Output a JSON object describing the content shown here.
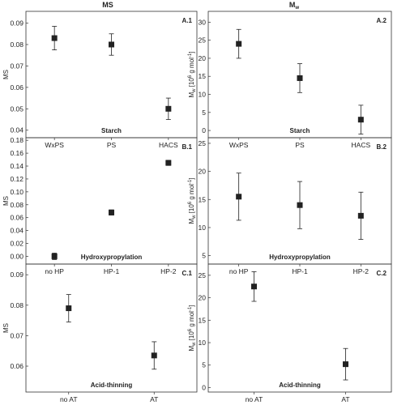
{
  "column_titles": {
    "left": "MS",
    "right": "M",
    "right_sub": "w"
  },
  "chart_data": [
    {
      "id": "A.1",
      "type": "scatter",
      "tag": "A.1",
      "caption": "Starch",
      "categories": [
        "WxPS",
        "PS",
        "HACS"
      ],
      "values": [
        0.083,
        0.08,
        0.05
      ],
      "err": [
        0.0055,
        0.005,
        0.005
      ],
      "ylabel": "MS",
      "ylim": [
        0.0365,
        0.0955
      ],
      "yticks": [
        0.04,
        0.05,
        0.06,
        0.07,
        0.08,
        0.09
      ],
      "ytick_labels": [
        "0.04",
        "0.05",
        "0.06",
        "0.07",
        "0.08",
        "0.09"
      ],
      "grid": false
    },
    {
      "id": "A.2",
      "type": "scatter",
      "tag": "A.2",
      "caption": "Starch",
      "categories": [
        "WxPS",
        "PS",
        "HACS"
      ],
      "values": [
        24,
        14.5,
        3
      ],
      "err": [
        4,
        4,
        4
      ],
      "ylabel": "M",
      "ylabel_sub": "w",
      "ylabel_rest": " [10",
      "ylabel_sup": "6",
      "ylabel_unit": " g mol",
      "ylabel_unit_sup": "-1",
      "ylabel_end": "]",
      "ylim": [
        -2,
        33
      ],
      "yticks": [
        0,
        5,
        10,
        15,
        20,
        25,
        30
      ],
      "ytick_labels": [
        "0",
        "5",
        "10",
        "15",
        "20",
        "25",
        "30"
      ],
      "grid": false
    },
    {
      "id": "B.1",
      "type": "scatter",
      "tag": "B.1",
      "caption": "Hydroxypropylation",
      "categories": [
        "no HP",
        "HP-1",
        "HP-2"
      ],
      "values": [
        0.0,
        0.068,
        0.145
      ],
      "err": [
        0.005,
        0.004,
        0.004
      ],
      "ylabel": "MS",
      "ylim": [
        -0.012,
        0.184
      ],
      "yticks": [
        0.0,
        0.02,
        0.04,
        0.06,
        0.08,
        0.1,
        0.12,
        0.14,
        0.16,
        0.18
      ],
      "ytick_labels": [
        "0.00",
        "0.02",
        "0.04",
        "0.06",
        "0.08",
        "0.10",
        "0.12",
        "0.14",
        "0.16",
        "0.18"
      ],
      "grid": false
    },
    {
      "id": "B.2",
      "type": "scatter",
      "tag": "B.2",
      "caption": "Hydroxypropylation",
      "categories": [
        "no HP",
        "HP-1",
        "HP-2"
      ],
      "values": [
        15.5,
        14,
        12.1
      ],
      "err": [
        4.2,
        4.2,
        4.2
      ],
      "ylabel": "M",
      "ylabel_sub": "w",
      "ylabel_rest": " [10",
      "ylabel_sup": "6",
      "ylabel_unit": " g mol",
      "ylabel_unit_sup": "-1",
      "ylabel_end": "]",
      "ylim": [
        3.5,
        26
      ],
      "yticks": [
        5,
        10,
        15,
        20,
        25
      ],
      "ytick_labels": [
        "5",
        "10",
        "15",
        "20",
        "25"
      ],
      "grid": false
    },
    {
      "id": "C.1",
      "type": "scatter",
      "tag": "C.1",
      "caption": "Acid-thinning",
      "categories": [
        "no AT",
        "AT"
      ],
      "values": [
        0.079,
        0.0635
      ],
      "err": [
        0.0045,
        0.0045
      ],
      "ylabel": "MS",
      "ylim": [
        0.0515,
        0.0935
      ],
      "yticks": [
        0.06,
        0.07,
        0.08,
        0.09
      ],
      "ytick_labels": [
        "0.06",
        "0.07",
        "0.08",
        "0.09"
      ],
      "grid": false
    },
    {
      "id": "C.2",
      "type": "scatter",
      "tag": "C.2",
      "caption": "Acid-thinning",
      "categories": [
        "no AT",
        "AT"
      ],
      "values": [
        22.5,
        5.2
      ],
      "err": [
        3.3,
        3.5
      ],
      "ylabel": "M",
      "ylabel_sub": "w",
      "ylabel_rest": " [10",
      "ylabel_sup": "6",
      "ylabel_unit": " g mol",
      "ylabel_unit_sup": "-1",
      "ylabel_end": "]",
      "ylim": [
        -1,
        27.5
      ],
      "yticks": [
        0,
        5,
        10,
        15,
        20,
        25
      ],
      "ytick_labels": [
        "0",
        "5",
        "10",
        "15",
        "20",
        "25"
      ],
      "grid": false
    }
  ]
}
